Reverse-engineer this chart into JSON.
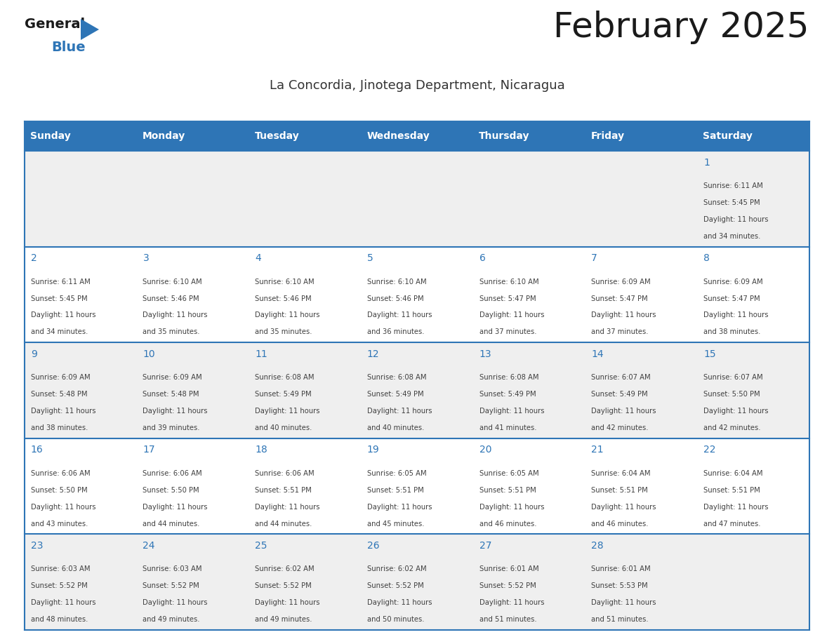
{
  "title": "February 2025",
  "subtitle": "La Concordia, Jinotega Department, Nicaragua",
  "days_of_week": [
    "Sunday",
    "Monday",
    "Tuesday",
    "Wednesday",
    "Thursday",
    "Friday",
    "Saturday"
  ],
  "header_bg": "#2E75B6",
  "header_text": "#FFFFFF",
  "cell_bg_row0": "#EFEFEF",
  "cell_bg_row1": "#FFFFFF",
  "cell_bg_row2": "#EFEFEF",
  "cell_bg_row3": "#FFFFFF",
  "cell_bg_row4": "#EFEFEF",
  "day_number_color": "#2E75B6",
  "text_color": "#404040",
  "border_color": "#2E75B6",
  "title_color": "#1a1a1a",
  "subtitle_color": "#333333",
  "calendar_data": [
    {
      "day": 1,
      "col": 6,
      "row": 0,
      "sunrise": "6:11 AM",
      "sunset": "5:45 PM",
      "minutes": "34"
    },
    {
      "day": 2,
      "col": 0,
      "row": 1,
      "sunrise": "6:11 AM",
      "sunset": "5:45 PM",
      "minutes": "34"
    },
    {
      "day": 3,
      "col": 1,
      "row": 1,
      "sunrise": "6:10 AM",
      "sunset": "5:46 PM",
      "minutes": "35"
    },
    {
      "day": 4,
      "col": 2,
      "row": 1,
      "sunrise": "6:10 AM",
      "sunset": "5:46 PM",
      "minutes": "35"
    },
    {
      "day": 5,
      "col": 3,
      "row": 1,
      "sunrise": "6:10 AM",
      "sunset": "5:46 PM",
      "minutes": "36"
    },
    {
      "day": 6,
      "col": 4,
      "row": 1,
      "sunrise": "6:10 AM",
      "sunset": "5:47 PM",
      "minutes": "37"
    },
    {
      "day": 7,
      "col": 5,
      "row": 1,
      "sunrise": "6:09 AM",
      "sunset": "5:47 PM",
      "minutes": "37"
    },
    {
      "day": 8,
      "col": 6,
      "row": 1,
      "sunrise": "6:09 AM",
      "sunset": "5:47 PM",
      "minutes": "38"
    },
    {
      "day": 9,
      "col": 0,
      "row": 2,
      "sunrise": "6:09 AM",
      "sunset": "5:48 PM",
      "minutes": "38"
    },
    {
      "day": 10,
      "col": 1,
      "row": 2,
      "sunrise": "6:09 AM",
      "sunset": "5:48 PM",
      "minutes": "39"
    },
    {
      "day": 11,
      "col": 2,
      "row": 2,
      "sunrise": "6:08 AM",
      "sunset": "5:49 PM",
      "minutes": "40"
    },
    {
      "day": 12,
      "col": 3,
      "row": 2,
      "sunrise": "6:08 AM",
      "sunset": "5:49 PM",
      "minutes": "40"
    },
    {
      "day": 13,
      "col": 4,
      "row": 2,
      "sunrise": "6:08 AM",
      "sunset": "5:49 PM",
      "minutes": "41"
    },
    {
      "day": 14,
      "col": 5,
      "row": 2,
      "sunrise": "6:07 AM",
      "sunset": "5:49 PM",
      "minutes": "42"
    },
    {
      "day": 15,
      "col": 6,
      "row": 2,
      "sunrise": "6:07 AM",
      "sunset": "5:50 PM",
      "minutes": "42"
    },
    {
      "day": 16,
      "col": 0,
      "row": 3,
      "sunrise": "6:06 AM",
      "sunset": "5:50 PM",
      "minutes": "43"
    },
    {
      "day": 17,
      "col": 1,
      "row": 3,
      "sunrise": "6:06 AM",
      "sunset": "5:50 PM",
      "minutes": "44"
    },
    {
      "day": 18,
      "col": 2,
      "row": 3,
      "sunrise": "6:06 AM",
      "sunset": "5:51 PM",
      "minutes": "44"
    },
    {
      "day": 19,
      "col": 3,
      "row": 3,
      "sunrise": "6:05 AM",
      "sunset": "5:51 PM",
      "minutes": "45"
    },
    {
      "day": 20,
      "col": 4,
      "row": 3,
      "sunrise": "6:05 AM",
      "sunset": "5:51 PM",
      "minutes": "46"
    },
    {
      "day": 21,
      "col": 5,
      "row": 3,
      "sunrise": "6:04 AM",
      "sunset": "5:51 PM",
      "minutes": "46"
    },
    {
      "day": 22,
      "col": 6,
      "row": 3,
      "sunrise": "6:04 AM",
      "sunset": "5:51 PM",
      "minutes": "47"
    },
    {
      "day": 23,
      "col": 0,
      "row": 4,
      "sunrise": "6:03 AM",
      "sunset": "5:52 PM",
      "minutes": "48"
    },
    {
      "day": 24,
      "col": 1,
      "row": 4,
      "sunrise": "6:03 AM",
      "sunset": "5:52 PM",
      "minutes": "49"
    },
    {
      "day": 25,
      "col": 2,
      "row": 4,
      "sunrise": "6:02 AM",
      "sunset": "5:52 PM",
      "minutes": "49"
    },
    {
      "day": 26,
      "col": 3,
      "row": 4,
      "sunrise": "6:02 AM",
      "sunset": "5:52 PM",
      "minutes": "50"
    },
    {
      "day": 27,
      "col": 4,
      "row": 4,
      "sunrise": "6:01 AM",
      "sunset": "5:52 PM",
      "minutes": "51"
    },
    {
      "day": 28,
      "col": 5,
      "row": 4,
      "sunrise": "6:01 AM",
      "sunset": "5:53 PM",
      "minutes": "51"
    }
  ],
  "num_rows": 5,
  "num_cols": 7,
  "fig_width": 11.88,
  "fig_height": 9.18,
  "dpi": 100
}
